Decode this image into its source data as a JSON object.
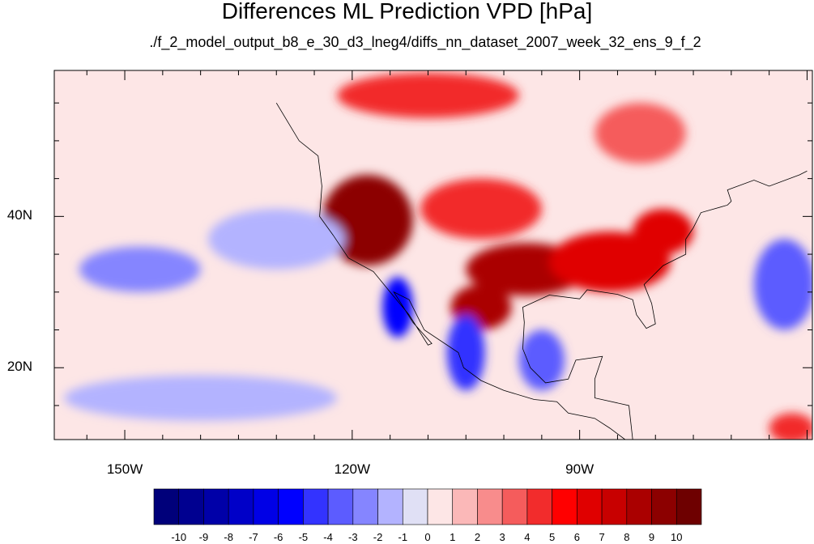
{
  "title": "Differences ML Prediction VPD [hPa]",
  "subtitle": "./f_2_model_output_b8_e_30_d3_lneg4/diffs_nn_dataset_2007_week_32_ens_9_f_2",
  "axes": {
    "x_ticks": [
      {
        "lon": -150,
        "label": "150W"
      },
      {
        "lon": -120,
        "label": "120W"
      },
      {
        "lon": -90,
        "label": "90W"
      }
    ],
    "y_ticks": [
      {
        "lat": 40,
        "label": "40N"
      },
      {
        "lat": 20,
        "label": "20N"
      }
    ],
    "lon_range": [
      -159.3,
      -59.3
    ],
    "lat_range": [
      10.5,
      59.3
    ]
  },
  "colorbar": {
    "labels": [
      "-10",
      "-9",
      "-8",
      "-7",
      "-6",
      "-5",
      "-4",
      "-3",
      "-2",
      "-1",
      "0",
      "1",
      "2",
      "3",
      "4",
      "5",
      "6",
      "7",
      "8",
      "9",
      "10"
    ],
    "colors": [
      "#00007a",
      "#000090",
      "#0000a8",
      "#0000c8",
      "#0000e6",
      "#0000ff",
      "#3333ff",
      "#5c5cff",
      "#8585ff",
      "#b3b3ff",
      "#e0e0f5",
      "#fde6e6",
      "#fbb8b8",
      "#f88c8c",
      "#f55c5c",
      "#f22c2c",
      "#ff0000",
      "#e00000",
      "#c80000",
      "#aa0000",
      "#8c0000",
      "#6e0000"
    ]
  },
  "field_regions": [
    {
      "name": "western-us-high",
      "lon": -118,
      "lat": 39.5,
      "rx": 6,
      "ry": 6,
      "value": 9
    },
    {
      "name": "southern-plains",
      "lon": -97,
      "lat": 33,
      "rx": 8,
      "ry": 3.5,
      "value": 8
    },
    {
      "name": "southeast-us",
      "lon": -86,
      "lat": 34,
      "rx": 8,
      "ry": 4,
      "value": 6
    },
    {
      "name": "mid-atlantic",
      "lon": -79,
      "lat": 38,
      "rx": 4,
      "ry": 3,
      "value": 6
    },
    {
      "name": "canada-north",
      "lon": -110,
      "lat": 56,
      "rx": 12,
      "ry": 3,
      "value": 4
    },
    {
      "name": "canada-east",
      "lon": -82,
      "lat": 51,
      "rx": 6,
      "ry": 4,
      "value": 3
    },
    {
      "name": "gulf-coast",
      "lon": -103,
      "lat": 28,
      "rx": 4,
      "ry": 3,
      "value": 8
    },
    {
      "name": "central-us",
      "lon": -103,
      "lat": 41,
      "rx": 8,
      "ry": 4,
      "value": 4
    },
    {
      "name": "baja-low",
      "lon": -114,
      "lat": 28,
      "rx": 2,
      "ry": 4,
      "value": -6
    },
    {
      "name": "mexico-coast-low",
      "lon": -105,
      "lat": 22,
      "rx": 2.5,
      "ry": 5,
      "value": -5
    },
    {
      "name": "gulf-low",
      "lon": -95,
      "lat": 21,
      "rx": 3,
      "ry": 4,
      "value": -4
    },
    {
      "name": "pacific-low-west",
      "lon": -148,
      "lat": 33,
      "rx": 8,
      "ry": 3,
      "value": -3
    },
    {
      "name": "pacific-low-east",
      "lon": -130,
      "lat": 37,
      "rx": 9,
      "ry": 4,
      "value": -2
    },
    {
      "name": "pacific-tropics",
      "lon": -140,
      "lat": 16,
      "rx": 18,
      "ry": 3,
      "value": -2
    },
    {
      "name": "atlantic-low",
      "lon": -63,
      "lat": 31,
      "rx": 4,
      "ry": 6,
      "value": -4
    },
    {
      "name": "caribbean-high",
      "lon": -62,
      "lat": 12,
      "rx": 3,
      "ry": 2,
      "value": 4
    }
  ],
  "colors": {
    "background_field": "#fde6e6",
    "coastline": "#000000"
  }
}
